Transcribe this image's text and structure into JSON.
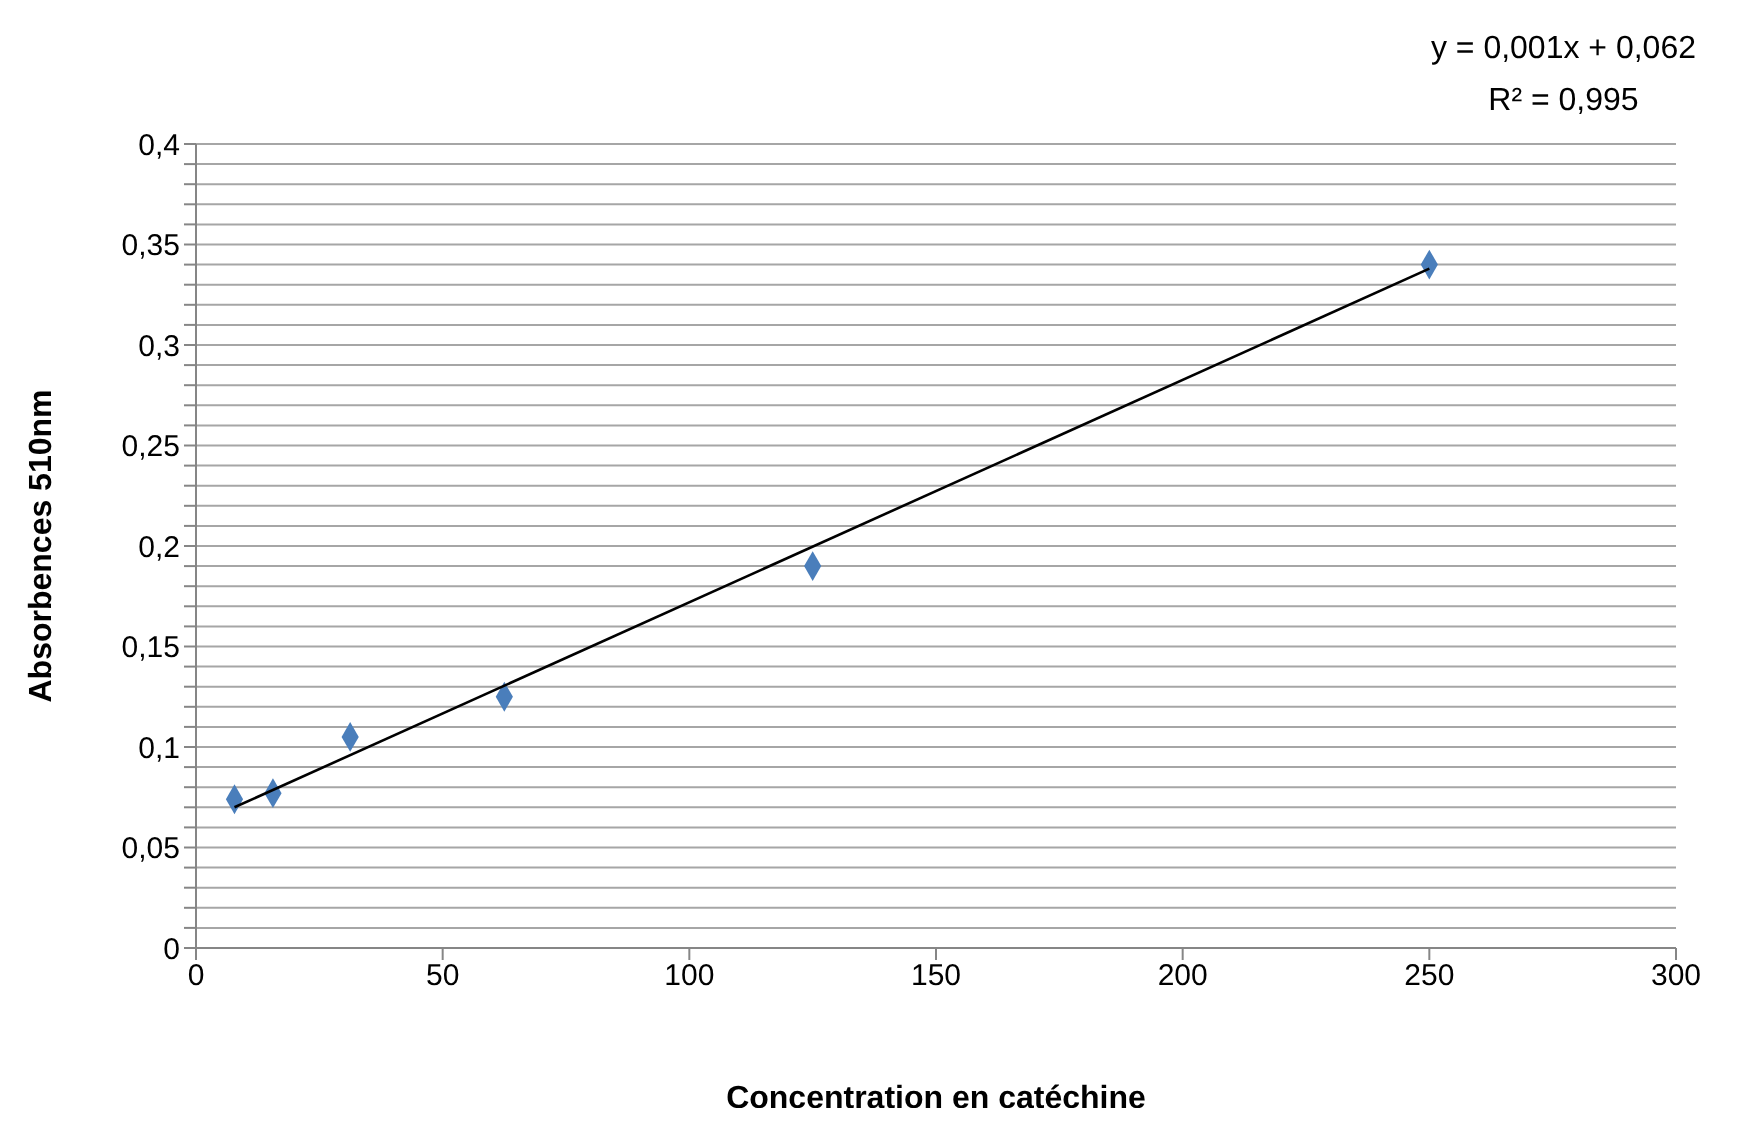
{
  "chart_data": {
    "type": "scatter",
    "xlabel": "Concentration en catéchine",
    "ylabel": "Absorbences 510nm",
    "annotations": [
      "y = 0,001x + 0,062",
      "R² = 0,995"
    ],
    "series": [
      {
        "color": "#4a7ebb",
        "marker": "diamond",
        "x": [
          7.8,
          15.6,
          31.25,
          62.5,
          125,
          250
        ],
        "values": [
          0.074,
          0.077,
          0.105,
          0.125,
          0.19,
          0.34
        ]
      },
      {
        "type": "line",
        "color": "#000000",
        "marker": "none",
        "x": [
          7.8,
          250
        ],
        "values": [
          0.07,
          0.338
        ]
      }
    ],
    "xlim": [
      0,
      300
    ],
    "xticks": [
      0,
      50,
      100,
      150,
      200,
      250,
      300
    ],
    "ylim": [
      0,
      0.4
    ],
    "yticks": [
      0,
      {
        "value": 0.01,
        "label": null
      },
      {
        "value": 0.02,
        "label": null
      },
      {
        "value": 0.03,
        "label": null
      },
      {
        "value": 0.04,
        "label": null
      },
      {
        "value": 0.05,
        "label": "0,05"
      },
      {
        "value": 0.06,
        "label": null
      },
      {
        "value": 0.07,
        "label": null
      },
      {
        "value": 0.08,
        "label": null
      },
      {
        "value": 0.09,
        "label": null
      },
      {
        "value": 0.1,
        "label": "0,1"
      },
      {
        "value": 0.11,
        "label": null
      },
      {
        "value": 0.12,
        "label": null
      },
      {
        "value": 0.13,
        "label": null
      },
      {
        "value": 0.14,
        "label": null
      },
      {
        "value": 0.15,
        "label": "0,15"
      },
      {
        "value": 0.16,
        "label": null
      },
      {
        "value": 0.17,
        "label": null
      },
      {
        "value": 0.18,
        "label": null
      },
      {
        "value": 0.19,
        "label": null
      },
      {
        "value": 0.2,
        "label": "0,2"
      },
      {
        "value": 0.21,
        "label": null
      },
      {
        "value": 0.22,
        "label": null
      },
      {
        "value": 0.23,
        "label": null
      },
      {
        "value": 0.24,
        "label": null
      },
      {
        "value": 0.25,
        "label": "0,25"
      },
      {
        "value": 0.26,
        "label": null
      },
      {
        "value": 0.27,
        "label": null
      },
      {
        "value": 0.28,
        "label": null
      },
      {
        "value": 0.29,
        "label": null
      },
      {
        "value": 0.3,
        "label": "0,3"
      },
      {
        "value": 0.31,
        "label": null
      },
      {
        "value": 0.32,
        "label": null
      },
      {
        "value": 0.33,
        "label": null
      },
      {
        "value": 0.34,
        "label": null
      },
      {
        "value": 0.35,
        "label": "0,35"
      },
      {
        "value": 0.36,
        "label": null
      },
      {
        "value": 0.37,
        "label": null
      },
      {
        "value": 0.38,
        "label": null
      },
      {
        "value": 0.39,
        "label": null
      },
      {
        "value": 0.4,
        "label": "0,4"
      }
    ],
    "grid": "y"
  }
}
